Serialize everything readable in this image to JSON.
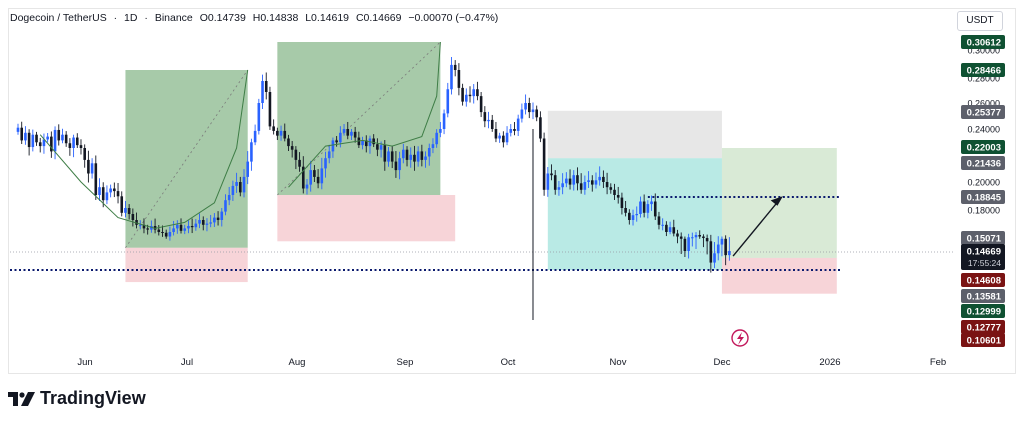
{
  "header": {
    "symbol": "Dogecoin / TetherUS",
    "interval": "1D",
    "exchange": "Binance",
    "open": "O0.14739",
    "high": "H0.14838",
    "low": "L0.14619",
    "close": "C0.14669",
    "change": "−0.00070 (−0.47%)"
  },
  "currency_button": "USDT",
  "footer": {
    "brand": "TradingView"
  },
  "colors": {
    "bull": "#2962ff",
    "bear": "#131722",
    "green_zone": "#5e9e63",
    "red_zone": "#f2b8be",
    "teal_zone": "#7fd8cf",
    "grey_zone": "#d7d7d7",
    "dotted_line": "#0b1a6e"
  },
  "chart_data": {
    "type": "candlestick",
    "x_tick_labels": [
      "Jun",
      "Jul",
      "Aug",
      "Sep",
      "Oct",
      "Nov",
      "Dec",
      "2026",
      "Feb"
    ],
    "y_tick_labels": [
      "0.30000",
      "0.28000",
      "0.26000",
      "0.24000",
      "0.20000",
      "0.18000"
    ],
    "price_labels": [
      {
        "value": "0.30612",
        "style": "green"
      },
      {
        "value": "0.28466",
        "style": "green"
      },
      {
        "value": "0.25377",
        "style": "grey"
      },
      {
        "value": "0.22003",
        "style": "green"
      },
      {
        "value": "0.21436",
        "style": "grey"
      },
      {
        "value": "0.18845",
        "style": "grey"
      },
      {
        "value": "0.15071",
        "style": "grey"
      },
      {
        "value": "0.14669",
        "style": "current",
        "sub": "17:55:24"
      },
      {
        "value": "0.14608",
        "style": "red"
      },
      {
        "value": "0.13581",
        "style": "grey"
      },
      {
        "value": "0.12999",
        "style": "green"
      },
      {
        "value": "0.12777",
        "style": "red"
      },
      {
        "value": "0.10601",
        "style": "red"
      }
    ],
    "last_price": 0.14669,
    "countdown": "17:55:24",
    "support_line": 0.137,
    "target_line": 0.1885,
    "zones": [
      {
        "kind": "green",
        "x0": "Jun 22",
        "x1": "Jul 25",
        "y0": 0.148,
        "y1": 0.284
      },
      {
        "kind": "red",
        "x0": "Jun 22",
        "x1": "Jul 25",
        "y0": 0.1305,
        "y1": 0.148
      },
      {
        "kind": "green",
        "x0": "Aug 02",
        "x1": "Sep 15",
        "y0": 0.19,
        "y1": 0.306
      },
      {
        "kind": "red",
        "x0": "Aug 02",
        "x1": "Sep 19",
        "y0": 0.15,
        "y1": 0.19
      },
      {
        "kind": "grey",
        "x0": "Oct 14",
        "x1": "Nov 30",
        "y0": 0.214,
        "y1": 0.254
      },
      {
        "kind": "teal",
        "x0": "Oct 14",
        "x1": "Nov 30",
        "y0": 0.137,
        "y1": 0.214
      },
      {
        "kind": "lightgreen",
        "x0": "Nov 30",
        "x1": "Dec 31",
        "y0": 0.1435,
        "y1": 0.22
      },
      {
        "kind": "red",
        "x0": "Nov 30",
        "x1": "Dec 31",
        "y0": 0.1255,
        "y1": 0.1435
      }
    ],
    "closes": [
      0.241,
      0.228,
      0.236,
      0.221,
      0.234,
      0.226,
      0.222,
      0.229,
      0.232,
      0.218,
      0.239,
      0.228,
      0.234,
      0.225,
      0.22,
      0.231,
      0.223,
      0.22,
      0.213,
      0.205,
      0.211,
      0.19,
      0.196,
      0.186,
      0.192,
      0.195,
      0.193,
      0.189,
      0.176,
      0.18,
      0.175,
      0.17,
      0.166,
      0.166,
      0.163,
      0.162,
      0.165,
      0.162,
      0.16,
      0.159,
      0.154,
      0.16,
      0.163,
      0.166,
      0.161,
      0.163,
      0.165,
      0.164,
      0.167,
      0.17,
      0.166,
      0.167,
      0.168,
      0.172,
      0.17,
      0.177,
      0.186,
      0.19,
      0.197,
      0.2,
      0.192,
      0.203,
      0.212,
      0.226,
      0.238,
      0.26,
      0.276,
      0.268,
      0.242,
      0.238,
      0.233,
      0.238,
      0.23,
      0.222,
      0.219,
      0.213,
      0.209,
      0.195,
      0.198,
      0.207,
      0.203,
      0.199,
      0.208,
      0.214,
      0.218,
      0.228,
      0.226,
      0.236,
      0.24,
      0.233,
      0.237,
      0.231,
      0.223,
      0.228,
      0.222,
      0.23,
      0.224,
      0.219,
      0.223,
      0.212,
      0.218,
      0.212,
      0.207,
      0.214,
      0.219,
      0.213,
      0.216,
      0.212,
      0.218,
      0.213,
      0.215,
      0.22,
      0.224,
      0.236,
      0.24,
      0.252,
      0.27,
      0.288,
      0.284,
      0.271,
      0.261,
      0.266,
      0.265,
      0.27,
      0.265,
      0.253,
      0.246,
      0.247,
      0.24,
      0.23,
      0.233,
      0.226,
      0.236,
      0.24,
      0.238,
      0.248,
      0.255,
      0.26,
      0.253,
      0.255,
      0.249,
      0.23,
      0.194,
      0.205,
      0.204,
      0.194,
      0.196,
      0.199,
      0.202,
      0.198,
      0.204,
      0.199,
      0.194,
      0.2,
      0.201,
      0.198,
      0.201,
      0.203,
      0.2,
      0.196,
      0.194,
      0.19,
      0.188,
      0.18,
      0.176,
      0.17,
      0.174,
      0.175,
      0.185,
      0.176,
      0.183,
      0.185,
      0.173,
      0.166,
      0.166,
      0.16,
      0.164,
      0.158,
      0.154,
      0.151,
      0.147,
      0.153,
      0.153,
      0.156,
      0.154,
      0.152,
      0.15,
      0.141,
      0.146,
      0.149,
      0.151,
      0.145,
      0.147
    ]
  }
}
